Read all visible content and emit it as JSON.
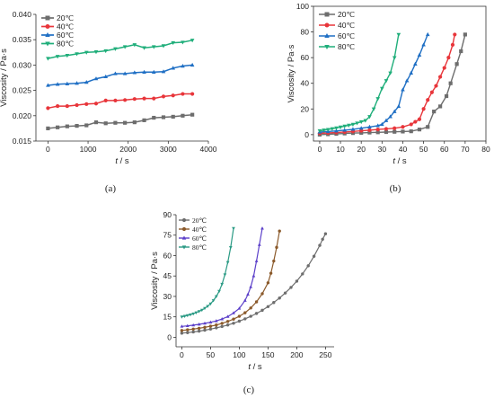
{
  "chart_data": [
    {
      "type": "line",
      "panel_label": "(a)",
      "xlabel": "t / s",
      "ylabel": "Viscosity / Pa·s",
      "xlim": [
        -300,
        4000
      ],
      "ylim": [
        0.015,
        0.04
      ],
      "xticks": [
        0,
        1000,
        2000,
        3000,
        4000
      ],
      "yticks": [
        0.015,
        0.02,
        0.025,
        0.03,
        0.035,
        0.04
      ],
      "ytick_labels": [
        "0.015",
        "0.020",
        "0.025",
        "0.030",
        "0.035",
        "0.040"
      ],
      "grid": false,
      "legend": "top-left",
      "series": [
        {
          "name": "20℃",
          "color": "#6d6d6d",
          "marker": "square",
          "x": [
            0,
            240,
            480,
            720,
            960,
            1200,
            1440,
            1680,
            1920,
            2160,
            2400,
            2640,
            2880,
            3120,
            3360,
            3600
          ],
          "values": [
            0.0175,
            0.0177,
            0.0179,
            0.018,
            0.0181,
            0.0187,
            0.0185,
            0.0186,
            0.0186,
            0.0187,
            0.0191,
            0.0196,
            0.0197,
            0.0198,
            0.02,
            0.0202
          ]
        },
        {
          "name": "40℃",
          "color": "#e8353a",
          "marker": "circle",
          "x": [
            0,
            240,
            480,
            720,
            960,
            1200,
            1440,
            1680,
            1920,
            2160,
            2400,
            2640,
            2880,
            3120,
            3360,
            3600
          ],
          "values": [
            0.0215,
            0.0219,
            0.0219,
            0.0221,
            0.0223,
            0.0224,
            0.023,
            0.023,
            0.0231,
            0.0233,
            0.0234,
            0.0234,
            0.0238,
            0.024,
            0.0243,
            0.0243
          ]
        },
        {
          "name": "60℃",
          "color": "#1f6fc4",
          "marker": "triangle-up",
          "x": [
            0,
            240,
            480,
            720,
            960,
            1200,
            1440,
            1680,
            1920,
            2160,
            2400,
            2640,
            2880,
            3120,
            3360,
            3600
          ],
          "values": [
            0.026,
            0.0262,
            0.0263,
            0.0264,
            0.0266,
            0.0273,
            0.0277,
            0.0283,
            0.0283,
            0.0285,
            0.0286,
            0.0286,
            0.0287,
            0.0294,
            0.0298,
            0.03
          ]
        },
        {
          "name": "80℃",
          "color": "#1fae7a",
          "marker": "triangle-down",
          "x": [
            0,
            240,
            480,
            720,
            960,
            1200,
            1440,
            1680,
            1920,
            2160,
            2400,
            2640,
            2880,
            3120,
            3360,
            3600
          ],
          "values": [
            0.0313,
            0.0317,
            0.0319,
            0.0322,
            0.0325,
            0.0326,
            0.0328,
            0.0332,
            0.0336,
            0.034,
            0.0334,
            0.0336,
            0.0338,
            0.0344,
            0.0345,
            0.0349
          ]
        }
      ]
    },
    {
      "type": "line",
      "panel_label": "(b)",
      "xlabel": "t / s",
      "ylabel": "Viscosity / Pa·s",
      "xlim": [
        -3,
        80
      ],
      "ylim": [
        -5,
        100
      ],
      "xticks": [
        0,
        10,
        20,
        30,
        40,
        50,
        60,
        70,
        80
      ],
      "yticks": [
        0,
        20,
        40,
        60,
        80,
        100
      ],
      "ytick_labels": [
        "0",
        "20",
        "40",
        "60",
        "80",
        "100"
      ],
      "grid": false,
      "legend": "top-left",
      "series": [
        {
          "name": "20℃",
          "color": "#6d6d6d",
          "marker": "square",
          "x": [
            0,
            4,
            8,
            12,
            16,
            20,
            24,
            28,
            32,
            36,
            40,
            44,
            48,
            52,
            55,
            58,
            61,
            63,
            66,
            68,
            70
          ],
          "values": [
            0,
            0.3,
            0.6,
            0.9,
            1.2,
            1.4,
            1.6,
            1.8,
            2,
            2.2,
            2.4,
            2.6,
            4,
            6,
            18,
            22,
            30,
            40,
            55,
            65,
            78
          ]
        },
        {
          "name": "40℃",
          "color": "#e8353a",
          "marker": "circle",
          "x": [
            0,
            4,
            8,
            12,
            16,
            20,
            24,
            28,
            32,
            36,
            40,
            44,
            46,
            48,
            50,
            52,
            54,
            56,
            58,
            60,
            62,
            64,
            65
          ],
          "values": [
            1,
            1.3,
            1.6,
            2,
            2.5,
            3,
            3.5,
            4,
            4.5,
            5,
            6,
            8,
            10,
            12,
            20,
            27,
            33,
            38,
            45,
            52,
            60,
            70,
            78
          ]
        },
        {
          "name": "60℃",
          "color": "#1f6fc4",
          "marker": "triangle-up",
          "x": [
            0,
            4,
            8,
            12,
            16,
            20,
            24,
            28,
            30,
            32,
            34,
            36,
            38,
            40,
            42,
            44,
            46,
            48,
            50,
            52
          ],
          "values": [
            2,
            2.4,
            2.9,
            3.5,
            4.2,
            5,
            6,
            7,
            8,
            11,
            14,
            18,
            22,
            35,
            42,
            48,
            55,
            62,
            70,
            78
          ]
        },
        {
          "name": "80℃",
          "color": "#1fae7a",
          "marker": "triangle-down",
          "x": [
            0,
            2,
            4,
            6,
            8,
            10,
            12,
            14,
            16,
            18,
            20,
            22,
            24,
            26,
            28,
            30,
            32,
            34,
            36,
            38
          ],
          "values": [
            3,
            3.5,
            4,
            4.6,
            5.2,
            5.9,
            6.6,
            7.3,
            8,
            9,
            10,
            11,
            14,
            20,
            28,
            36,
            42,
            48,
            60,
            78
          ]
        }
      ]
    },
    {
      "type": "line",
      "panel_label": "(c)",
      "xlabel": "t / s",
      "ylabel": "Viscosity / Pa·s",
      "xlim": [
        -10,
        265
      ],
      "ylim": [
        -7,
        90
      ],
      "xticks": [
        0,
        50,
        100,
        150,
        200,
        250
      ],
      "yticks": [
        0,
        15,
        30,
        45,
        60,
        75,
        90
      ],
      "ytick_labels": [
        "0",
        "15",
        "30",
        "45",
        "60",
        "75",
        "90"
      ],
      "grid": false,
      "legend": "top-left",
      "series": [
        {
          "name": "20℃",
          "color": "#6d6d6d",
          "marker": "circle",
          "x": [
            0,
            10,
            20,
            30,
            40,
            50,
            60,
            70,
            80,
            90,
            100,
            110,
            120,
            130,
            140,
            150,
            160,
            170,
            180,
            190,
            200,
            210,
            220,
            230,
            240,
            245,
            250
          ],
          "values": [
            3,
            3.4,
            3.9,
            4.5,
            5.2,
            6,
            6.9,
            7.9,
            9,
            10.3,
            11.8,
            13.5,
            15.4,
            17.5,
            19.8,
            22.5,
            25.5,
            28.8,
            32.5,
            36.6,
            41.2,
            46.5,
            52.5,
            59.5,
            67.5,
            72,
            76
          ]
        },
        {
          "name": "40℃",
          "color": "#8b5a2b",
          "marker": "circle",
          "x": [
            0,
            10,
            20,
            30,
            40,
            50,
            60,
            70,
            80,
            90,
            100,
            110,
            120,
            130,
            140,
            150,
            155,
            160,
            165,
            170
          ],
          "values": [
            5,
            5.5,
            6,
            6.6,
            7.3,
            8.1,
            9,
            10.2,
            11.6,
            13.3,
            15.4,
            18,
            21.5,
            26,
            32,
            40,
            47,
            56,
            66,
            78
          ]
        },
        {
          "name": "60℃",
          "color": "#5b3fc9",
          "marker": "triangle-up",
          "x": [
            0,
            10,
            20,
            30,
            40,
            50,
            60,
            70,
            80,
            90,
            100,
            110,
            115,
            120,
            125,
            130,
            135,
            140
          ],
          "values": [
            8,
            8.4,
            8.9,
            9.5,
            10.2,
            11,
            12,
            13.4,
            15.2,
            17.8,
            21.2,
            27,
            31.5,
            37,
            45,
            56,
            68,
            80
          ]
        },
        {
          "name": "80℃",
          "color": "#2a9a84",
          "marker": "triangle-down",
          "x": [
            0,
            5,
            10,
            15,
            20,
            25,
            30,
            35,
            40,
            45,
            50,
            55,
            60,
            65,
            70,
            75,
            80,
            85,
            90
          ],
          "values": [
            15,
            15.5,
            16,
            16.6,
            17.3,
            18.1,
            19,
            20,
            21.3,
            22.8,
            24.6,
            27,
            30,
            33.8,
            39,
            46,
            55,
            66,
            80
          ]
        }
      ]
    }
  ]
}
